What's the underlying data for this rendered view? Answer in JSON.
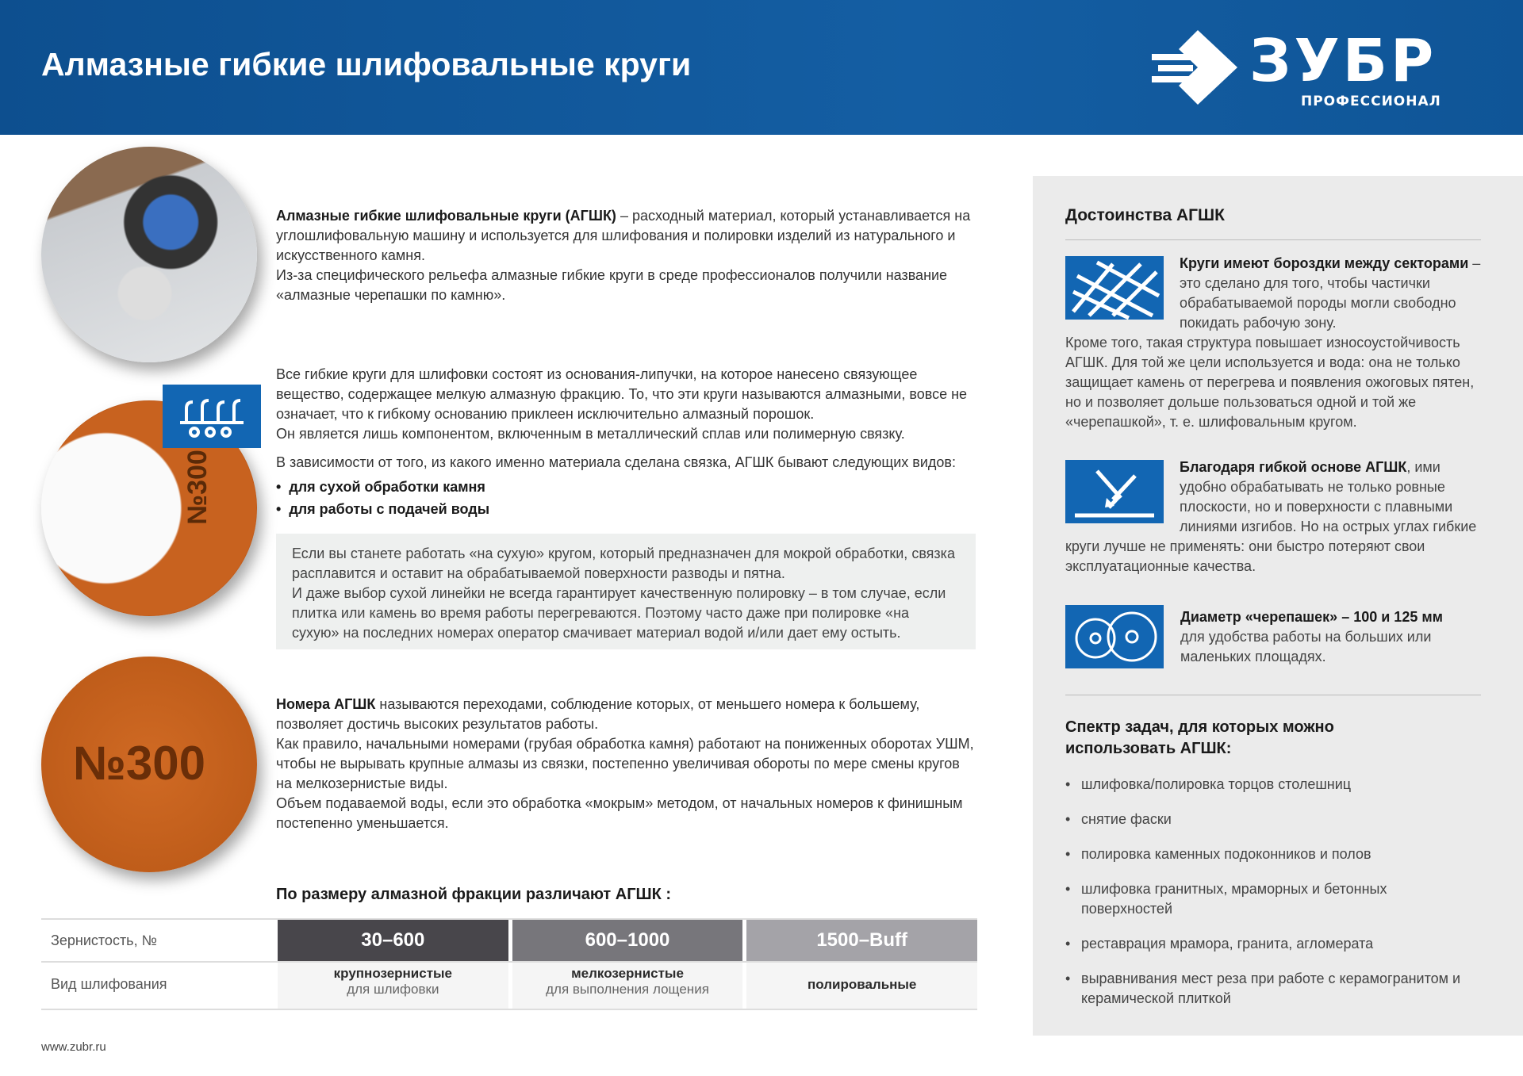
{
  "header": {
    "title": "Алмазные гибкие шлифовальные круги",
    "logo_text": "ЗУБР",
    "logo_sub": "ПРОФЕССИОНАЛ"
  },
  "intro": {
    "bold": "Алмазные гибкие шлифовальные круги (АГШК)",
    "text": " – расходный материал, который устанавливается на углошлифовальную машину и используется для шлифования и полировки изделий из натурального и искусственного камня.",
    "text2": "Из-за специфического рельефа алмазные гибкие круги в среде профессионалов получили название «алмазные черепашки по камню»."
  },
  "composition": {
    "text": "Все гибкие круги для шлифовки состоят из основания-липучки, на которое нанесено связующее вещество, содержащее мелкую алмазную фракцию. То, что эти круги называются алмазными, вовсе не означает, что к гибкому основанию приклеен исключительно алмазный порошок.",
    "text2": "Он является лишь компонентом, включенным в металлический сплав или полимерную связку.",
    "types_intro": "В зависимости от того, из какого именно материала сделана связка, АГШК бывают следующих видов:",
    "types": [
      "для сухой обработки камня",
      "для работы с подачей воды"
    ]
  },
  "note": {
    "text": "Если вы станете работать «на сухую» кругом, который предназначен для мокрой обработки, связка расплавится и оставит на обрабатываемой поверхности разводы и пятна.",
    "text2": "И даже выбор сухой линейки не всегда гарантирует качественную полировку – в том случае, если плитка или камень во время работы перегреваются. Поэтому часто даже при полировке «на сухую» на последних номерах оператор смачивает материал водой и/или дает ему остыть."
  },
  "numbers": {
    "bold": "Номера АГШК",
    "text": " называются переходами, соблюдение которых, от меньшего номера к большему, позволяет достичь высоких результатов работы.",
    "text2": "Как правило, начальными номерами (грубая обработка камня) работают на пониженных оборотах УШМ, чтобы не вырывать крупные алмазы из связки, постепенно увеличивая обороты по мере смены кругов на мелкозернистые виды.",
    "text3": "Объем подаваемой воды, если это обработка «мокрым» методом, от начальных номеров к финишным постепенно уменьшается."
  },
  "disc_label": "№300",
  "table": {
    "title": "По размеру алмазной фракции различают АГШК :",
    "row1_label": "Зернистость, №",
    "row2_label": "Вид шлифования",
    "cols": [
      {
        "grit": "30–600",
        "kind": "крупнозернистые",
        "purpose": "для шлифовки",
        "color": "#48464b"
      },
      {
        "grit": "600–1000",
        "kind": "мелкозернистые",
        "purpose": "для выполнения лощения",
        "color": "#77767b"
      },
      {
        "grit": "1500–Buff",
        "kind": "полировальные",
        "purpose": "",
        "color": "#a4a3a8"
      }
    ]
  },
  "footer": {
    "url": "www.zubr.ru"
  },
  "right": {
    "title": "Достоинства АГШК",
    "f1": {
      "bold": "Круги имеют бороздки между секторами",
      "text": " – это сделано для того, чтобы частички обрабатываемой породы могли свободно покидать рабочую зону.",
      "text2": "Кроме того, такая структура повышает износоустойчивость АГШК. Для той же цели используется и вода: она не только защищает камень от перегрева и появления ожоговых пятен, но и позволяет дольше пользоваться одной и той же «черепашкой», т. е. шлифовальным кругом."
    },
    "f2": {
      "bold": "Благодаря гибкой основе АГШК",
      "text": ", ими удобно обрабатывать не только ровные плоскости, но и поверхности с плавными линиями изгибов. Но на острых углах гибкие круги лучше не применять: они быстро потеряют свои эксплуатационные качества."
    },
    "f3": {
      "bold": "Диаметр «черепашек» – 100 и 125 мм",
      "text": "для удобства работы на больших или маленьких площадях."
    },
    "tasks_title": "Спектр задач, для которых можно использовать АГШК:",
    "tasks": [
      "шлифовка/полировка торцов столешниц",
      "снятие фаски",
      "полировка каменных подоконников и полов",
      "шлифовка гранитных, мраморных и бетонных поверхностей",
      "реставрация мрамора, гранита, агломерата",
      "выравнивания мест реза при работе с керамогранитом и керамической плиткой"
    ]
  },
  "colors": {
    "brand": "#145ea3",
    "icon": "#1266b3",
    "panel": "#ebebeb",
    "disc": "#c8621f"
  }
}
